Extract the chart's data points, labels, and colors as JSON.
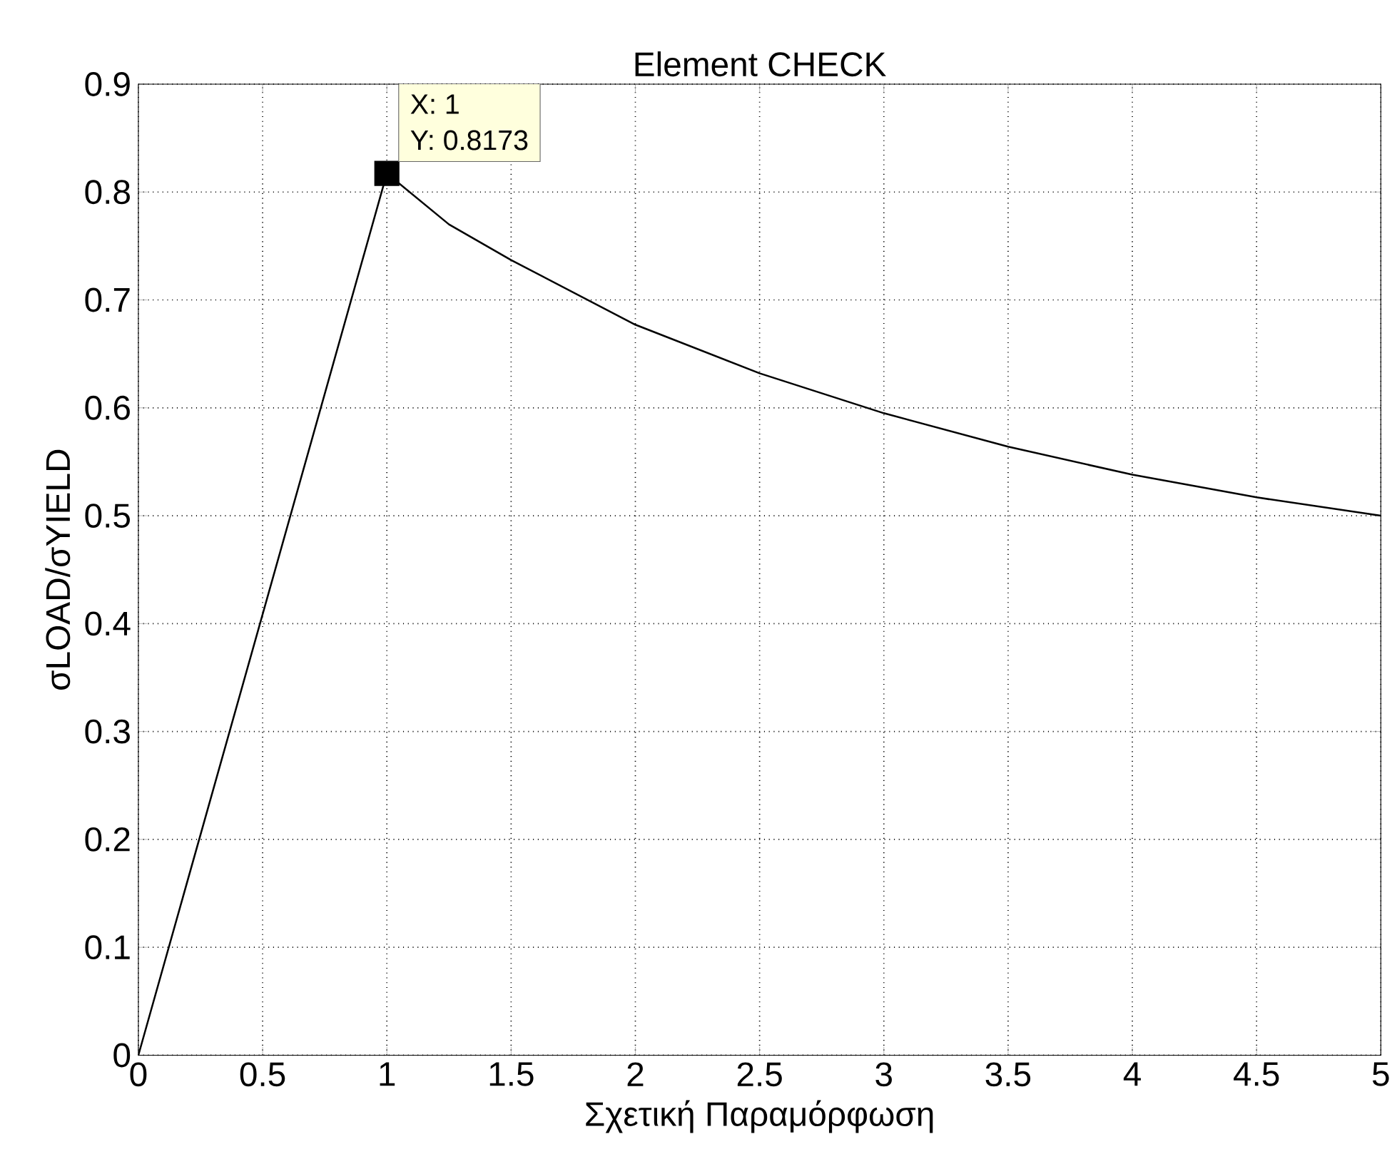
{
  "chart_data": {
    "type": "line",
    "title": "Element CHECK",
    "xlabel": "Σχετική Παραμόρφωση",
    "ylabel": "σLOAD/σYIELD",
    "x": [
      0,
      1,
      1.25,
      1.5,
      2,
      2.5,
      3,
      3.5,
      4,
      4.5,
      5
    ],
    "series": [
      {
        "color": "#000000",
        "values": [
          0,
          0.8173,
          0.77,
          0.737,
          0.677,
          0.632,
          0.595,
          0.564,
          0.538,
          0.517,
          0.5
        ]
      }
    ],
    "xlim": [
      0,
      5
    ],
    "ylim": [
      0,
      0.9
    ],
    "xticks": [
      0,
      0.5,
      1,
      1.5,
      2,
      2.5,
      3,
      3.5,
      4,
      4.5,
      5
    ],
    "yticks": [
      0,
      0.1,
      0.2,
      0.3,
      0.4,
      0.5,
      0.6,
      0.7,
      0.8,
      0.9
    ],
    "grid": true,
    "line_style": "solid",
    "marker": "none",
    "annotations": [
      {
        "text": "X: 1",
        "x": 1,
        "y": 0.8173
      },
      {
        "text": "Y: 0.8173",
        "x": 1,
        "y": 0.8173
      }
    ]
  }
}
